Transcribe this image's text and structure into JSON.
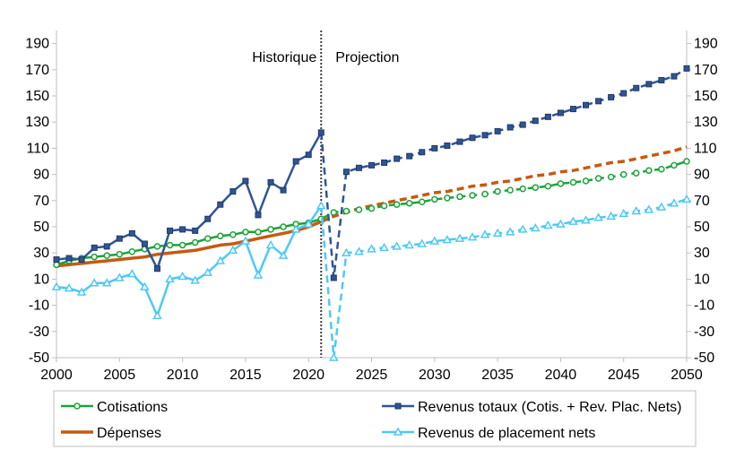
{
  "chart_data": {
    "type": "line",
    "annotations": [
      "Historique",
      "Projection"
    ],
    "divider_year": 2021,
    "xlim": [
      2000,
      2050
    ],
    "ylim": [
      -50,
      200
    ],
    "x_ticks": [
      2000,
      2005,
      2010,
      2015,
      2020,
      2025,
      2030,
      2035,
      2040,
      2045,
      2050
    ],
    "y_ticks": [
      -50,
      -30,
      -10,
      10,
      30,
      50,
      70,
      90,
      110,
      130,
      150,
      170,
      190
    ],
    "y_ticks_right": [
      -50,
      -30,
      -10,
      10,
      30,
      50,
      70,
      90,
      110,
      130,
      150,
      170,
      190
    ],
    "grid": false,
    "legend_position": "bottom",
    "series": [
      {
        "name": "Cotisations",
        "color": "#1aa33a",
        "marker": "circle",
        "x": [
          2000,
          2001,
          2002,
          2003,
          2004,
          2005,
          2006,
          2007,
          2008,
          2009,
          2010,
          2011,
          2012,
          2013,
          2014,
          2015,
          2016,
          2017,
          2018,
          2019,
          2020,
          2021,
          2022,
          2023,
          2024,
          2025,
          2026,
          2027,
          2028,
          2029,
          2030,
          2031,
          2032,
          2033,
          2034,
          2035,
          2036,
          2037,
          2038,
          2039,
          2040,
          2041,
          2042,
          2043,
          2044,
          2045,
          2046,
          2047,
          2048,
          2049,
          2050
        ],
        "values": [
          21,
          24,
          26,
          27,
          28,
          29,
          31,
          33,
          35,
          36,
          36,
          38,
          41,
          43,
          44,
          46,
          46,
          48,
          50,
          52,
          53,
          56,
          61,
          62,
          63,
          64,
          66,
          67,
          68,
          69,
          71,
          72,
          73,
          74,
          75,
          77,
          78,
          79,
          80,
          81,
          83,
          84,
          85,
          87,
          88,
          90,
          91,
          93,
          94,
          97,
          100
        ]
      },
      {
        "name": "Revenus totaux (Cotis. + Rev. Plac. Nets)",
        "color": "#2f5597",
        "marker": "square",
        "x": [
          2000,
          2001,
          2002,
          2003,
          2004,
          2005,
          2006,
          2007,
          2008,
          2009,
          2010,
          2011,
          2012,
          2013,
          2014,
          2015,
          2016,
          2017,
          2018,
          2019,
          2020,
          2021,
          2022,
          2023,
          2024,
          2025,
          2026,
          2027,
          2028,
          2029,
          2030,
          2031,
          2032,
          2033,
          2034,
          2035,
          2036,
          2037,
          2038,
          2039,
          2040,
          2041,
          2042,
          2043,
          2044,
          2045,
          2046,
          2047,
          2048,
          2049,
          2050
        ],
        "values": [
          25,
          26,
          25,
          34,
          35,
          41,
          45,
          37,
          18,
          47,
          48,
          47,
          56,
          67,
          77,
          85,
          59,
          84,
          78,
          100,
          105,
          122,
          11,
          92,
          95,
          97,
          99,
          102,
          104,
          107,
          110,
          112,
          115,
          118,
          120,
          123,
          126,
          128,
          131,
          134,
          137,
          140,
          143,
          146,
          149,
          152,
          156,
          159,
          162,
          165,
          171
        ]
      },
      {
        "name": "Dépenses",
        "color": "#c55a11",
        "marker": "none",
        "x": [
          2000,
          2001,
          2002,
          2003,
          2004,
          2005,
          2006,
          2007,
          2008,
          2009,
          2010,
          2011,
          2012,
          2013,
          2014,
          2015,
          2016,
          2017,
          2018,
          2019,
          2020,
          2021,
          2022,
          2023,
          2024,
          2025,
          2026,
          2027,
          2028,
          2029,
          2030,
          2031,
          2032,
          2033,
          2034,
          2035,
          2036,
          2037,
          2038,
          2039,
          2040,
          2041,
          2042,
          2043,
          2044,
          2045,
          2046,
          2047,
          2048,
          2049,
          2050
        ],
        "values": [
          20,
          21,
          22,
          23,
          24,
          25,
          26,
          27,
          29,
          30,
          31,
          32,
          34,
          36,
          37,
          39,
          41,
          43,
          45,
          47,
          50,
          54,
          58,
          61,
          64,
          66,
          68,
          70,
          72,
          74,
          76,
          77,
          79,
          81,
          82,
          84,
          85,
          87,
          89,
          90,
          92,
          93,
          95,
          97,
          99,
          100,
          102,
          104,
          106,
          108,
          111
        ]
      },
      {
        "name": "Revenus de placement nets",
        "color": "#4dc9f6",
        "marker": "triangle",
        "x": [
          2000,
          2001,
          2002,
          2003,
          2004,
          2005,
          2006,
          2007,
          2008,
          2009,
          2010,
          2011,
          2012,
          2013,
          2014,
          2015,
          2016,
          2017,
          2018,
          2019,
          2020,
          2021,
          2022,
          2023,
          2024,
          2025,
          2026,
          2027,
          2028,
          2029,
          2030,
          2031,
          2032,
          2033,
          2034,
          2035,
          2036,
          2037,
          2038,
          2039,
          2040,
          2041,
          2042,
          2043,
          2044,
          2045,
          2046,
          2047,
          2048,
          2049,
          2050
        ],
        "values": [
          4,
          3,
          0,
          7,
          7,
          11,
          14,
          4,
          -18,
          10,
          12,
          9,
          15,
          24,
          32,
          39,
          13,
          36,
          28,
          48,
          52,
          66,
          -50,
          30,
          31,
          33,
          34,
          35,
          36,
          37,
          39,
          40,
          41,
          42,
          44,
          45,
          46,
          48,
          49,
          51,
          52,
          54,
          55,
          57,
          58,
          60,
          62,
          63,
          65,
          68,
          71
        ]
      }
    ]
  }
}
